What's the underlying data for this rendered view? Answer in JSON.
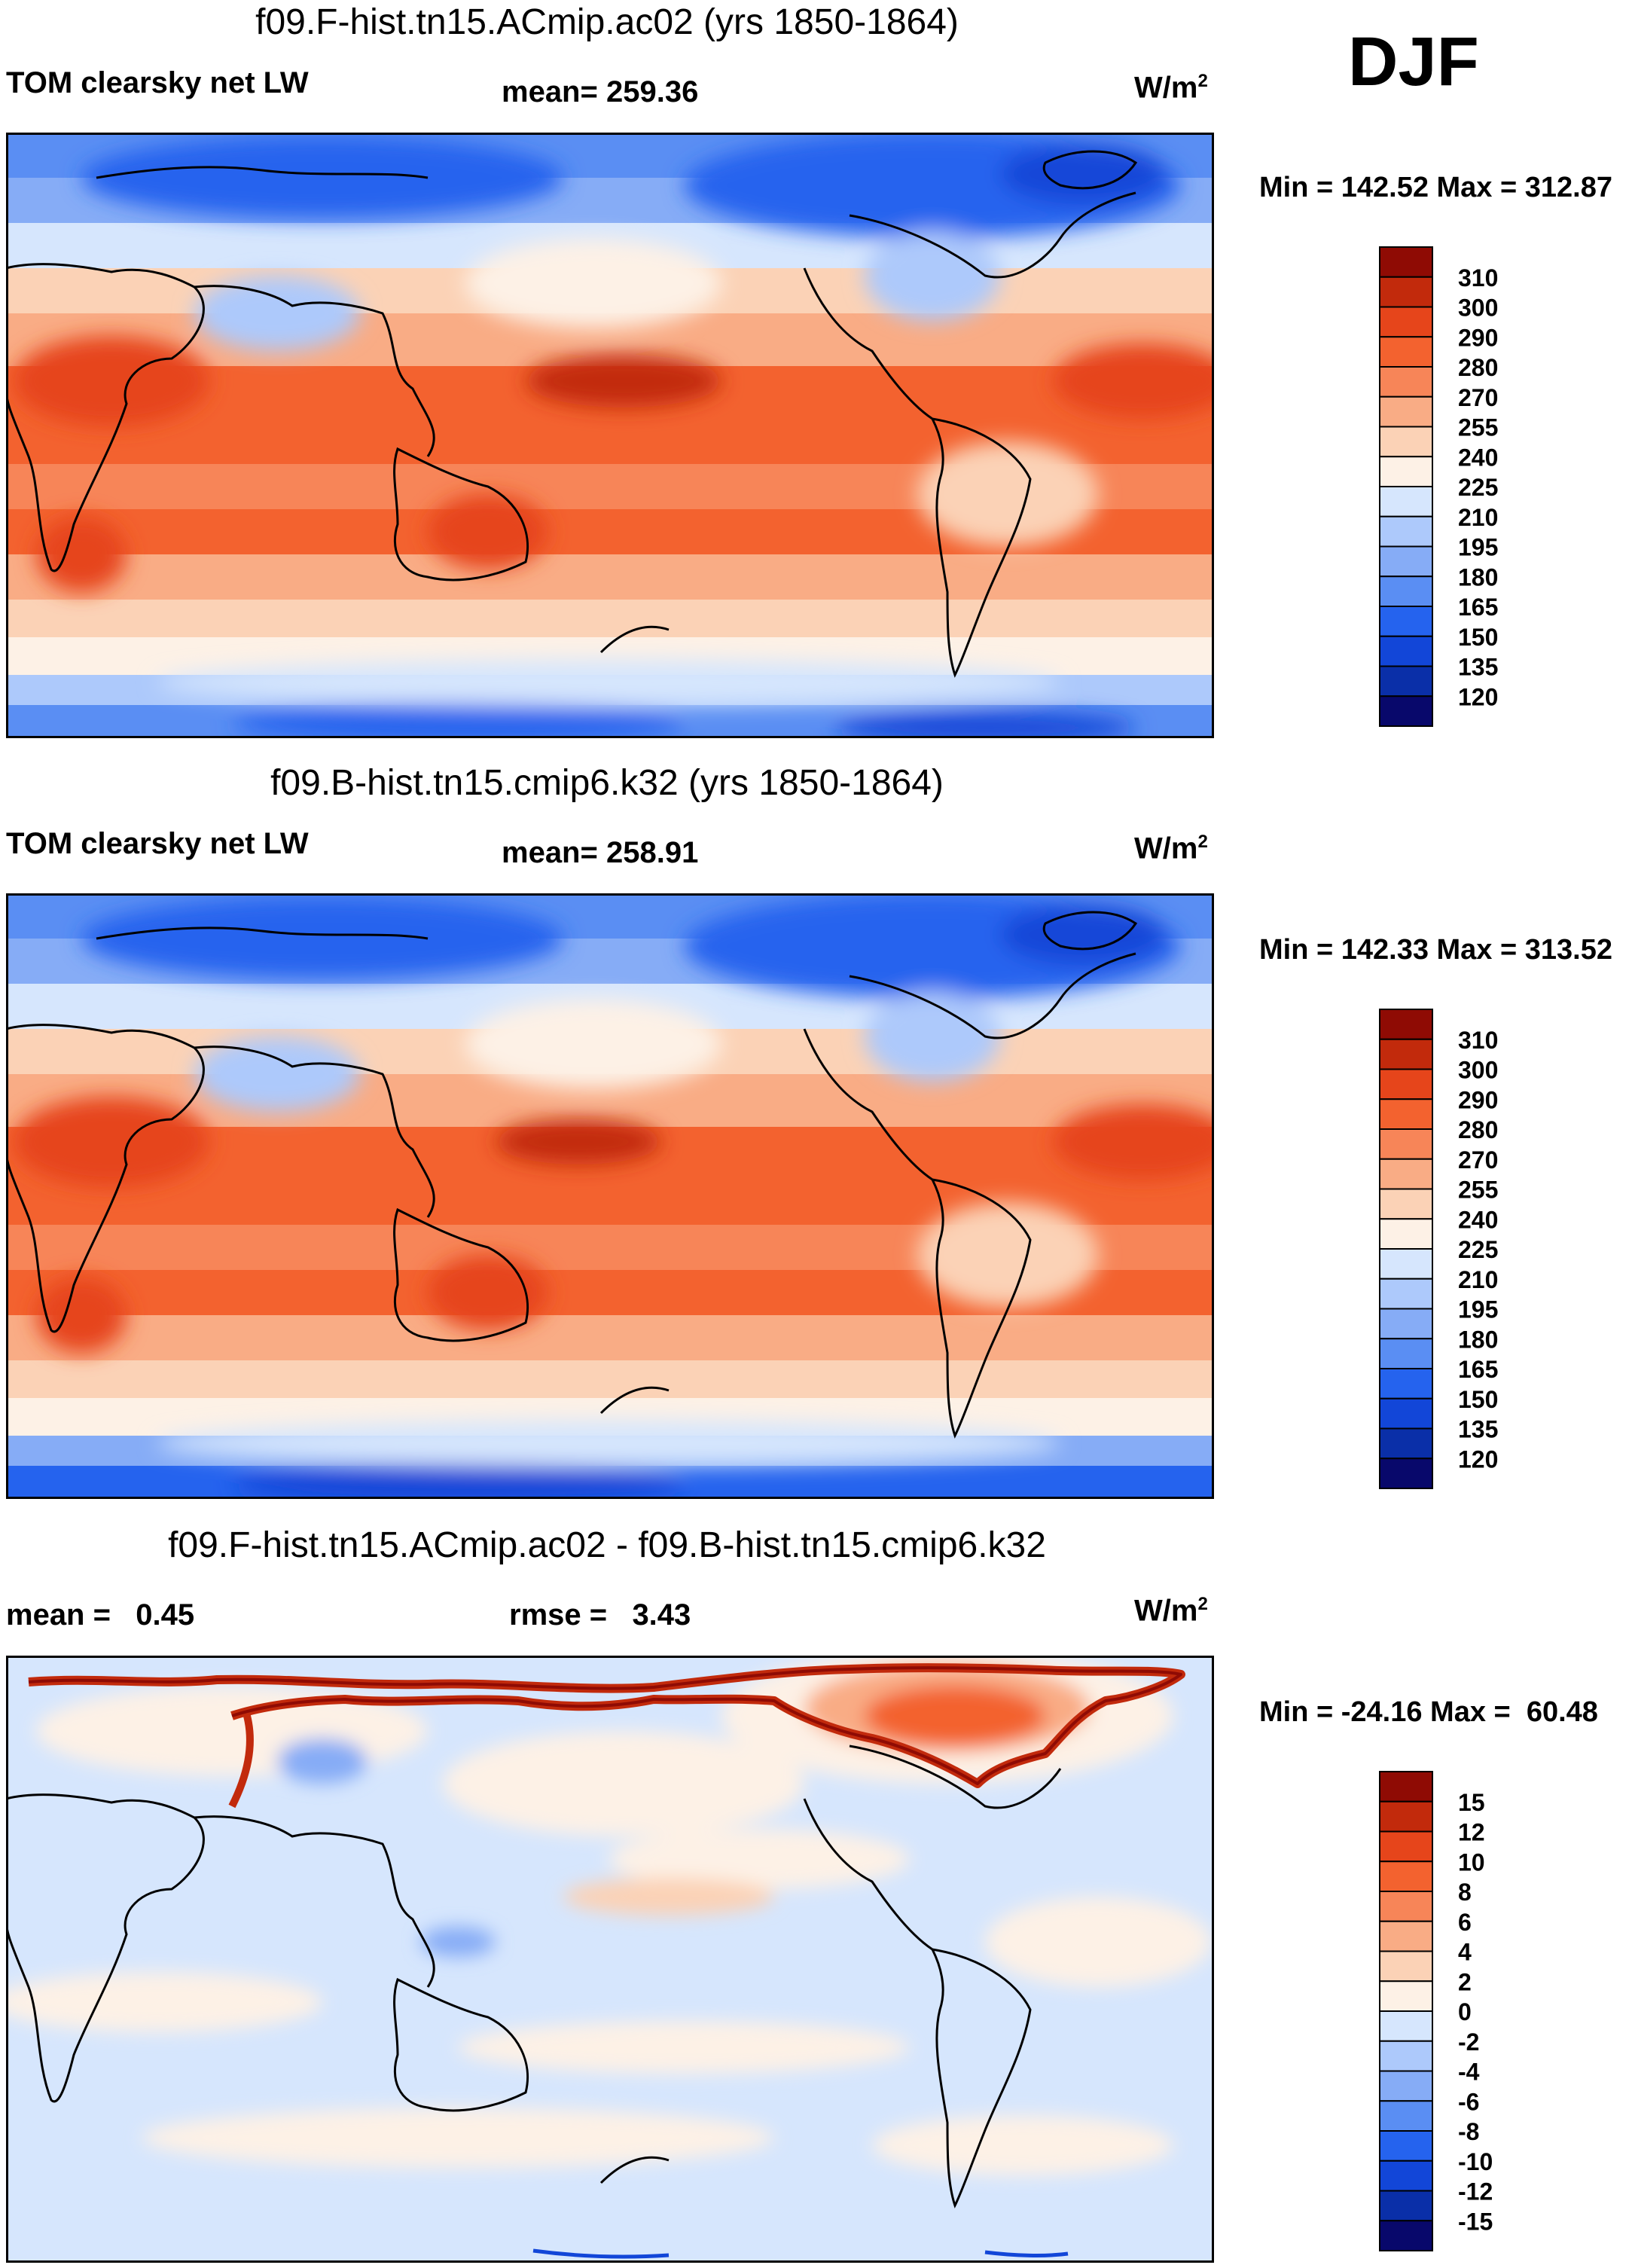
{
  "season": "DJF",
  "colors": {
    "abs_scale": [
      "#08086b",
      "#0a2fa8",
      "#1246d8",
      "#2563ee",
      "#5a8ef3",
      "#86acf6",
      "#adc9fb",
      "#d6e6fd",
      "#fdf1e6",
      "#fbd2b6",
      "#f9ac85",
      "#f78558",
      "#f3622f",
      "#e6451b",
      "#c22a0c",
      "#8f0b04"
    ],
    "diff_scale": [
      "#08086b",
      "#0a2fa8",
      "#1246d8",
      "#2563ee",
      "#5a8ef3",
      "#86acf6",
      "#adc9fb",
      "#d6e6fd",
      "#fdf1e6",
      "#fbd2b6",
      "#f9ac85",
      "#f78558",
      "#f3622f",
      "#e6451b",
      "#c22a0c",
      "#8f0b04"
    ]
  },
  "chart_data": [
    {
      "type": "heatmap",
      "title": "f09.F-hist.tn15.ACmip.ac02 (yrs 1850-1864)",
      "variable": "TOM clearsky net LW",
      "stat_text": "mean= 259.36",
      "mean": 259.36,
      "units_base": "W/m",
      "units_exp": "2",
      "minmax_text": "Min = 142.52 Max = 312.87",
      "min": 142.52,
      "max": 312.87,
      "colorbar_levels": [
        "310",
        "300",
        "290",
        "280",
        "270",
        "255",
        "240",
        "225",
        "210",
        "195",
        "180",
        "165",
        "150",
        "135",
        "120"
      ]
    },
    {
      "type": "heatmap",
      "title": "f09.B-hist.tn15.cmip6.k32 (yrs 1850-1864)",
      "variable": "TOM clearsky net LW",
      "stat_text": "mean= 258.91",
      "mean": 258.91,
      "units_base": "W/m",
      "units_exp": "2",
      "minmax_text": "Min = 142.33 Max = 313.52",
      "min": 142.33,
      "max": 313.52,
      "colorbar_levels": [
        "310",
        "300",
        "290",
        "280",
        "270",
        "255",
        "240",
        "225",
        "210",
        "195",
        "180",
        "165",
        "150",
        "135",
        "120"
      ]
    },
    {
      "type": "heatmap",
      "title": "f09.F-hist.tn15.ACmip.ac02 - f09.B-hist.tn15.cmip6.k32",
      "mean_text": "mean =   0.45",
      "mean": 0.45,
      "stat_text": "rmse =   3.43",
      "rmse": 3.43,
      "units_base": "W/m",
      "units_exp": "2",
      "minmax_text": "Min = -24.16 Max =  60.48",
      "min": -24.16,
      "max": 60.48,
      "colorbar_levels": [
        "15",
        "12",
        "10",
        "8",
        "6",
        "4",
        "2",
        "0",
        "-2",
        "-4",
        "-6",
        "-8",
        "-10",
        "-12",
        "-15"
      ]
    }
  ]
}
